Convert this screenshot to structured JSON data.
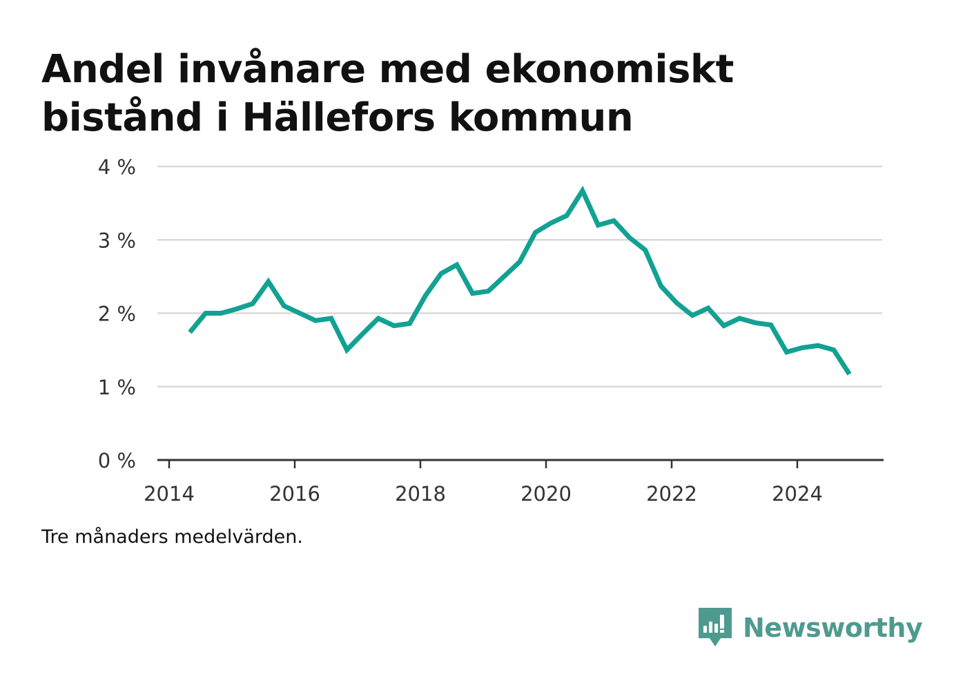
{
  "title": "Andel invånare med ekonomiskt bistånd i Hällefors kommun",
  "footnote": "Tre månaders medelvärden.",
  "brand": {
    "name": "Newsworthy",
    "color": "#4f9a8f"
  },
  "colors": {
    "line": "#12a193",
    "grid": "#d9d9d9",
    "axis": "#333333"
  },
  "chart_data": {
    "type": "line",
    "title": "Andel invånare med ekonomiskt bistånd i Hällefors kommun",
    "xlabel": "",
    "ylabel": "",
    "xlim": [
      2014,
      2025.35
    ],
    "ylim": [
      0,
      4
    ],
    "x_ticks": [
      2014,
      2016,
      2018,
      2020,
      2022,
      2024
    ],
    "y_ticks": [
      {
        "value": 0,
        "label": "0 %"
      },
      {
        "value": 1,
        "label": "1 %"
      },
      {
        "value": 2,
        "label": "2 %"
      },
      {
        "value": 3,
        "label": "3 %"
      },
      {
        "value": 4,
        "label": "4 %"
      }
    ],
    "grid": "horizontal",
    "series": [
      {
        "x": [
          2014.33,
          2014.58,
          2014.83,
          2015.08,
          2015.33,
          2015.58,
          2015.83,
          2016.08,
          2016.33,
          2016.58,
          2016.83,
          2017.08,
          2017.33,
          2017.58,
          2017.83,
          2018.08,
          2018.33,
          2018.58,
          2018.83,
          2019.08,
          2019.33,
          2019.58,
          2019.83,
          2020.08,
          2020.33,
          2020.58,
          2020.83,
          2021.08,
          2021.33,
          2021.58,
          2021.83,
          2022.08,
          2022.33,
          2022.58,
          2022.83,
          2023.08,
          2023.33,
          2023.58,
          2023.83,
          2024.08,
          2024.33,
          2024.58,
          2024.83
        ],
        "values": [
          1.74,
          2.0,
          2.0,
          2.06,
          2.13,
          2.43,
          2.1,
          2.0,
          1.9,
          1.93,
          1.5,
          1.72,
          1.93,
          1.83,
          1.86,
          2.24,
          2.54,
          2.66,
          2.27,
          2.3,
          2.5,
          2.7,
          3.1,
          3.23,
          3.33,
          3.67,
          3.2,
          3.26,
          3.03,
          2.86,
          2.37,
          2.14,
          1.97,
          2.07,
          1.83,
          1.93,
          1.87,
          1.84,
          1.47,
          1.53,
          1.56,
          1.5,
          1.17
        ]
      }
    ]
  }
}
